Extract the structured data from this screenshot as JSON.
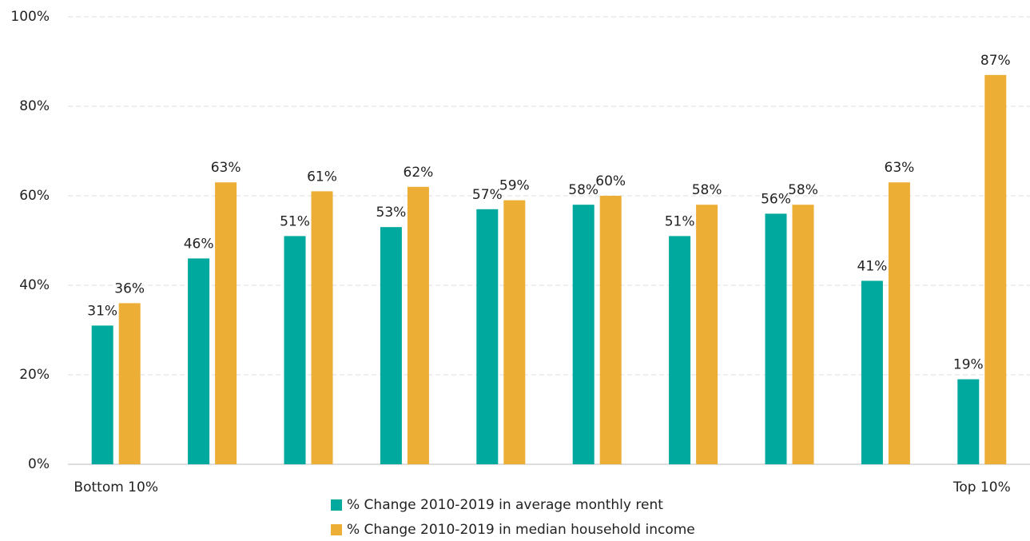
{
  "chart_data": {
    "type": "bar",
    "categories": [
      "Bottom 10%",
      null,
      null,
      null,
      null,
      null,
      null,
      null,
      null,
      "Top 10%"
    ],
    "series": [
      {
        "name": "% Change 2010-2019 in average monthly rent",
        "color": "#00a99d",
        "values": [
          31,
          46,
          51,
          53,
          57,
          58,
          51,
          56,
          41,
          19
        ],
        "value_labels": [
          "31%",
          "46%",
          "51%",
          "53%",
          "57%",
          "58%",
          "51%",
          "56%",
          "41%",
          "19%"
        ]
      },
      {
        "name": "% Change 2010-2019 in median household income",
        "color": "#ecae34",
        "values": [
          36,
          63,
          61,
          62,
          59,
          60,
          58,
          58,
          63,
          87
        ],
        "value_labels": [
          "36%",
          "63%",
          "61%",
          "62%",
          "59%",
          "60%",
          "58%",
          "58%",
          "63%",
          "87%"
        ]
      }
    ],
    "ylim": [
      0,
      100
    ],
    "yticks": [
      {
        "value": 0,
        "label": "0%"
      },
      {
        "value": 20,
        "label": "20%"
      },
      {
        "value": 40,
        "label": "40%"
      },
      {
        "value": 60,
        "label": "60%"
      },
      {
        "value": 80,
        "label": "80%"
      },
      {
        "value": 100,
        "label": "100%"
      }
    ],
    "grid": true,
    "legend": "bottom"
  }
}
